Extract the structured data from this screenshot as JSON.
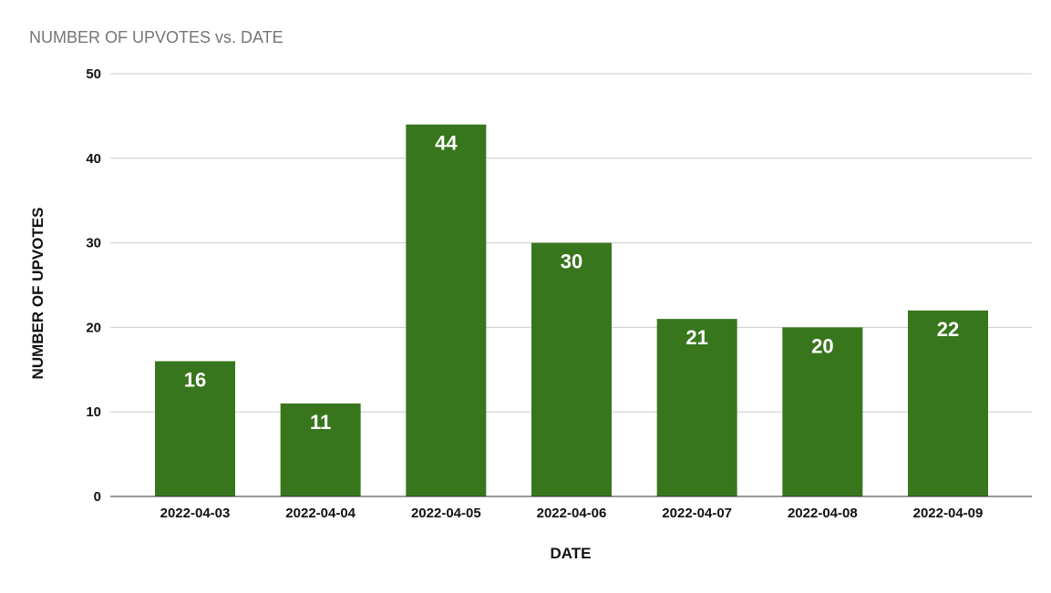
{
  "chart_data": {
    "type": "bar",
    "title": "NUMBER OF UPVOTES vs. DATE",
    "xlabel": "DATE",
    "ylabel": "NUMBER OF UPVOTES",
    "categories": [
      "2022-04-03",
      "2022-04-04",
      "2022-04-05",
      "2022-04-06",
      "2022-04-07",
      "2022-04-08",
      "2022-04-09"
    ],
    "series": [
      {
        "values": [
          16,
          11,
          44,
          30,
          21,
          20,
          22
        ],
        "color": "#38761d"
      }
    ],
    "ylim": [
      0,
      50
    ],
    "yticks": [
      0,
      10,
      20,
      30,
      40,
      50
    ],
    "grid": true,
    "data_labels": true,
    "legend": "none"
  }
}
